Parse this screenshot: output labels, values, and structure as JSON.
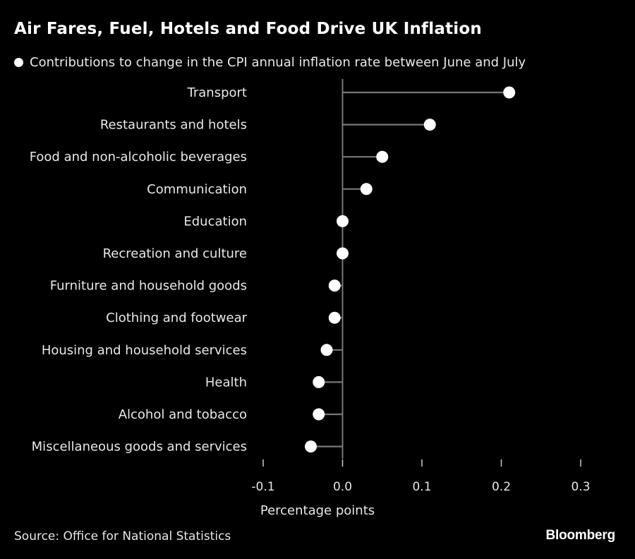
{
  "title": "Air Fares, Fuel, Hotels and Food Drive UK Inflation",
  "source": "Source: Office for National Statistics",
  "brand": "Bloomberg",
  "colors": {
    "background": "#000000",
    "marker": "#ffffff",
    "stem": "#777777",
    "text": "#ffffff"
  },
  "chart_data": {
    "type": "scatter",
    "orientation": "horizontal-lollipop",
    "categories": [
      "Transport",
      "Restaurants and hotels",
      "Food and non-alcoholic beverages",
      "Communication",
      "Education",
      "Recreation and culture",
      "Furniture and household goods",
      "Clothing and footwear",
      "Housing and household services",
      "Health",
      "Alcohol and tobacco",
      "Miscellaneous goods and services"
    ],
    "series": [
      {
        "name": "Contributions to change in the CPI annual inflation rate between June and July",
        "values": [
          0.21,
          0.11,
          0.05,
          0.03,
          0.0,
          0.0,
          -0.01,
          -0.01,
          -0.02,
          -0.03,
          -0.03,
          -0.04
        ]
      }
    ],
    "xlabel": "Percentage points",
    "xlim": [
      -0.1,
      0.3
    ],
    "xticks": [
      -0.1,
      0.0,
      0.1,
      0.2,
      0.3
    ],
    "xtick_labels": [
      "-0.1",
      "0.0",
      "0.1",
      "0.2",
      "0.3"
    ],
    "legend": "top-left",
    "grid": false
  }
}
